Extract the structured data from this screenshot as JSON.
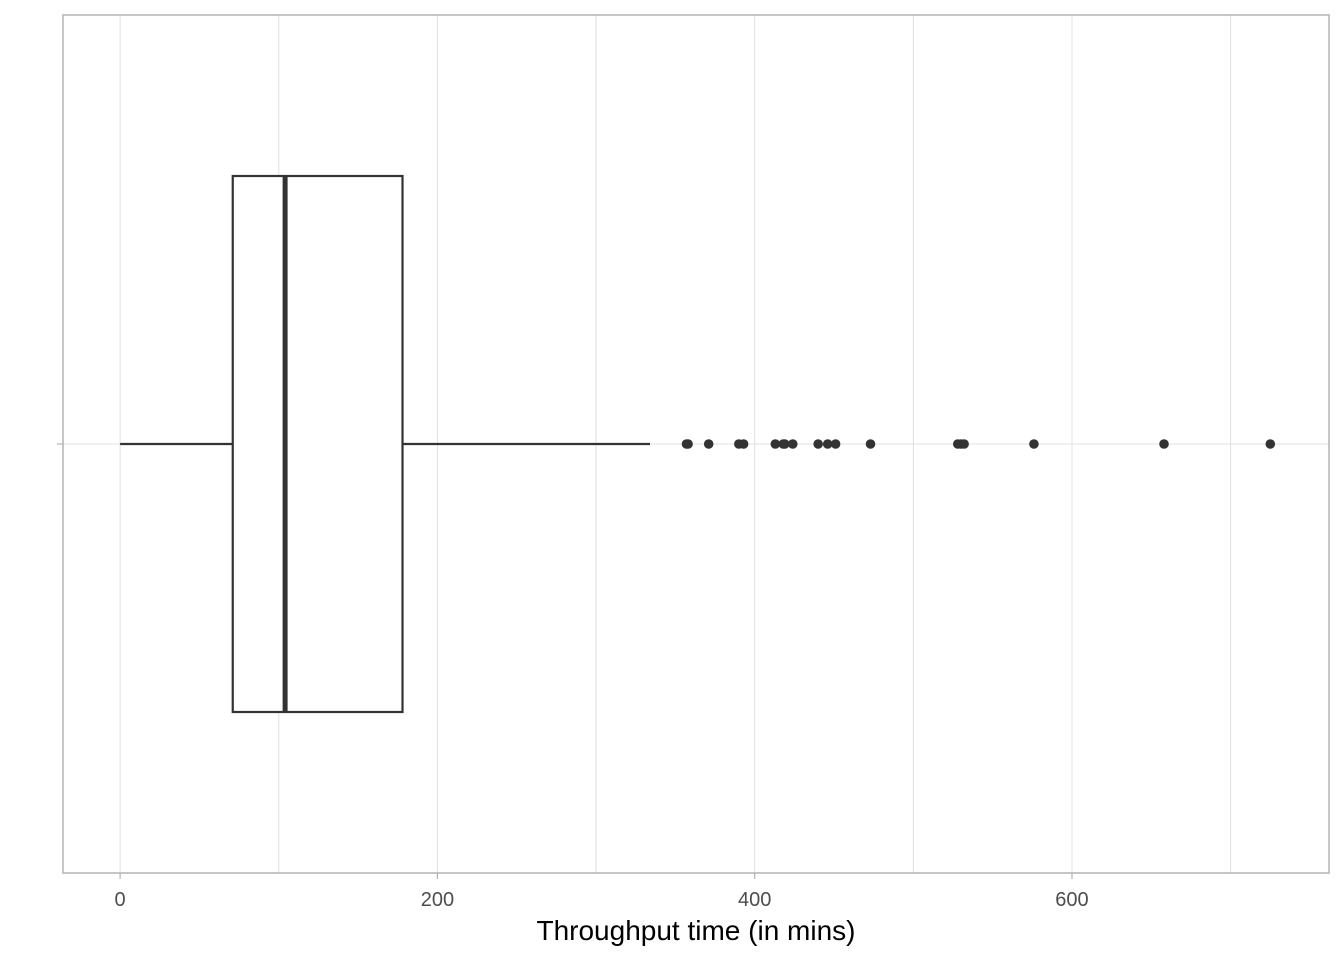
{
  "chart_data": {
    "type": "boxplot",
    "orientation": "horizontal",
    "xlabel": "Throughput time (in mins)",
    "ylabel": "",
    "xlim": [
      -36,
      762
    ],
    "x_ticks": [
      0,
      200,
      400,
      600
    ],
    "x_minor_ticks": [
      100,
      300,
      500,
      700
    ],
    "grid": true,
    "box": {
      "whisker_low": 0,
      "q1": 71,
      "median": 104,
      "q3": 178,
      "whisker_high": 334
    },
    "outliers": [
      357,
      358,
      371,
      390,
      393,
      413,
      418,
      419,
      424,
      440,
      446,
      451,
      473,
      528,
      530,
      532,
      576,
      658,
      725
    ],
    "colors": {
      "box_stroke": "#333333",
      "grid": "#e0e0e0",
      "panel_border": "#b3b3b3",
      "points": "#333333"
    }
  }
}
